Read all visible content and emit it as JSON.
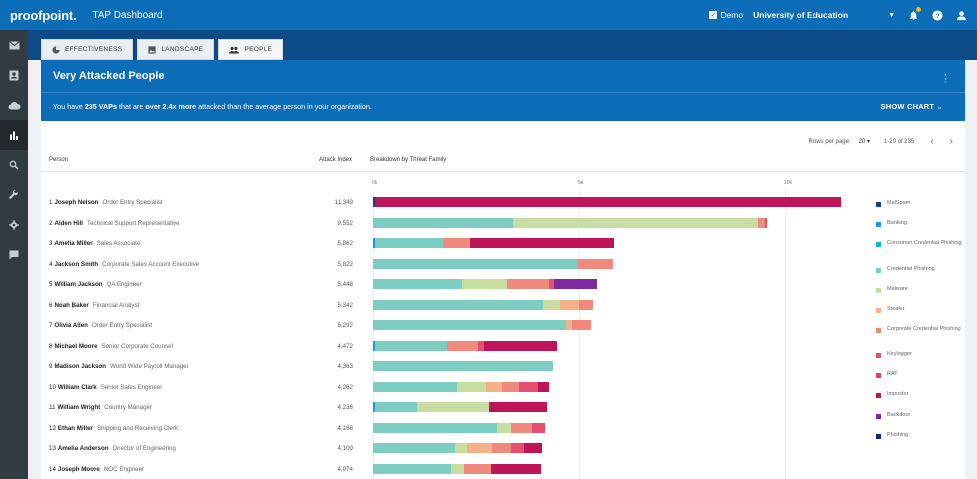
{
  "header": {
    "brand": "proofpoint.",
    "app_title": "TAP Dashboard",
    "demo_label": "Demo",
    "org": "University of Education"
  },
  "tabs": [
    {
      "label": "EFFECTIVENESS",
      "icon": "pie-chart-icon"
    },
    {
      "label": "LANDSCAPE",
      "icon": "image-icon"
    },
    {
      "label": "PEOPLE",
      "icon": "people-icon",
      "active": true
    }
  ],
  "card": {
    "title": "Very Attacked People",
    "summary_prefix": "You have ",
    "summary_vaps": "235 VAPs",
    "summary_middle": " that are ",
    "summary_more": "over 2.4x more",
    "summary_suffix": " attacked than the average person in your organization.",
    "show_chart": "SHOW CHART"
  },
  "pager": {
    "rows_per_page_label": "Rows per page:",
    "rows_per_page": "20",
    "range": "1-20 of 235"
  },
  "table": {
    "headers": {
      "person": "Person",
      "attack_index": "Attack Index",
      "breakdown": "Breakdown by Threat Family"
    },
    "scale_labels": [
      "0k",
      "5k",
      "10k"
    ]
  },
  "colors": {
    "brand": "#0b6cb8",
    "MalSpam": "#1f3c88",
    "Banking": "#1e9be0",
    "Consumer Credential Phishing": "#17b3c8",
    "Credential Phishing": "#7ecdc3",
    "Malware": "#c7dea0",
    "Stealer": "#f5b08c",
    "Corporate Credential Phishing": "#f08a7e",
    "Keylogger": "#e5506e",
    "RAT": "#d9406a",
    "Impostor": "#be1558",
    "Backdoor": "#7b2aa0",
    "Phishing": "#1a2a6c"
  },
  "legend": [
    "MalSpam",
    "Banking",
    "Consumer Credential Phishing",
    "Credential Phishing",
    "Malware",
    "Stealer",
    "Corporate Credential Phishing",
    "Keylogger",
    "RAT",
    "Impostor",
    "Backdoor",
    "Phishing"
  ],
  "rows": [
    {
      "rank": "1",
      "name": "Joseph Nelson",
      "role": "Order Entry Specialist",
      "index": "11,349",
      "segments": [
        [
          "MalSpam",
          50
        ],
        [
          "Impostor",
          11299
        ]
      ]
    },
    {
      "rank": "2",
      "name": "Aiden Hill",
      "role": "Technical Support Representative",
      "index": "9,552",
      "segments": [
        [
          "Credential Phishing",
          3400
        ],
        [
          "Malware",
          5950
        ],
        [
          "Corporate Credential Phishing",
          160
        ],
        [
          "Keylogger",
          42
        ]
      ]
    },
    {
      "rank": "3",
      "name": "Amelia Miller",
      "role": "Sales Associate",
      "index": "5,862",
      "segments": [
        [
          "Banking",
          50
        ],
        [
          "Credential Phishing",
          1650
        ],
        [
          "Corporate Credential Phishing",
          660
        ],
        [
          "Impostor",
          3502
        ]
      ]
    },
    {
      "rank": "4",
      "name": "Jackson Smith",
      "role": "Corporate Sales Account Executive",
      "index": "5,822",
      "segments": [
        [
          "Credential Phishing",
          4950
        ],
        [
          "Corporate Credential Phishing",
          872
        ]
      ]
    },
    {
      "rank": "5",
      "name": "William Jackson",
      "role": "QA Engineer",
      "index": "5,448",
      "segments": [
        [
          "Credential Phishing",
          2150
        ],
        [
          "Malware",
          1100
        ],
        [
          "Corporate Credential Phishing",
          1020
        ],
        [
          "Keylogger",
          120
        ],
        [
          "Backdoor",
          1058
        ]
      ]
    },
    {
      "rank": "6",
      "name": "Noah Baker",
      "role": "Financial Analyst",
      "index": "5,342",
      "segments": [
        [
          "Credential Phishing",
          4120
        ],
        [
          "Malware",
          420
        ],
        [
          "Stealer",
          460
        ],
        [
          "Corporate Credential Phishing",
          342
        ]
      ]
    },
    {
      "rank": "7",
      "name": "Olivia Allen",
      "role": "Order Entry Specialist",
      "index": "5,292",
      "segments": [
        [
          "Credential Phishing",
          4680
        ],
        [
          "Stealer",
          150
        ],
        [
          "Corporate Credential Phishing",
          462
        ]
      ]
    },
    {
      "rank": "8",
      "name": "Michael Moore",
      "role": "Senior Corporate Counsel",
      "index": "4,472",
      "segments": [
        [
          "Banking",
          50
        ],
        [
          "Credential Phishing",
          1750
        ],
        [
          "Corporate Credential Phishing",
          740
        ],
        [
          "Keylogger",
          160
        ],
        [
          "Impostor",
          1772
        ]
      ]
    },
    {
      "rank": "9",
      "name": "Madison Jackson",
      "role": "World Wide Payroll Manager",
      "index": "4,363",
      "segments": [
        [
          "Credential Phishing",
          4363
        ]
      ]
    },
    {
      "rank": "10",
      "name": "William Clark",
      "role": "Senior Sales Engineer",
      "index": "4,262",
      "segments": [
        [
          "Credential Phishing",
          2030
        ],
        [
          "Malware",
          720
        ],
        [
          "Stealer",
          380
        ],
        [
          "Corporate Credential Phishing",
          420
        ],
        [
          "Keylogger",
          460
        ],
        [
          "Impostor",
          252
        ]
      ]
    },
    {
      "rank": "11",
      "name": "William Wright",
      "role": "Country Manager",
      "index": "4,236",
      "segments": [
        [
          "Banking",
          50
        ],
        [
          "Credential Phishing",
          1030
        ],
        [
          "Malware",
          1730
        ],
        [
          "Impostor",
          1426
        ]
      ]
    },
    {
      "rank": "12",
      "name": "Ethan Miller",
      "role": "Shipping and Receiving Clerk",
      "index": "4,168",
      "segments": [
        [
          "Credential Phishing",
          3020
        ],
        [
          "Malware",
          330
        ],
        [
          "Corporate Credential Phishing",
          500
        ],
        [
          "Keylogger",
          318
        ]
      ]
    },
    {
      "rank": "13",
      "name": "Amelia Anderson",
      "role": "Director of Engineering",
      "index": "4,109",
      "segments": [
        [
          "Credential Phishing",
          2000
        ],
        [
          "Malware",
          280
        ],
        [
          "Stealer",
          600
        ],
        [
          "Corporate Credential Phishing",
          480
        ],
        [
          "Keylogger",
          300
        ],
        [
          "Impostor",
          449
        ]
      ]
    },
    {
      "rank": "14",
      "name": "Joseph Moore",
      "role": "NOC Engineer",
      "index": "4,074",
      "segments": [
        [
          "Credential Phishing",
          1900
        ],
        [
          "Malware",
          320
        ],
        [
          "Corporate Credential Phishing",
          650
        ],
        [
          "Impostor",
          1204
        ]
      ]
    }
  ]
}
